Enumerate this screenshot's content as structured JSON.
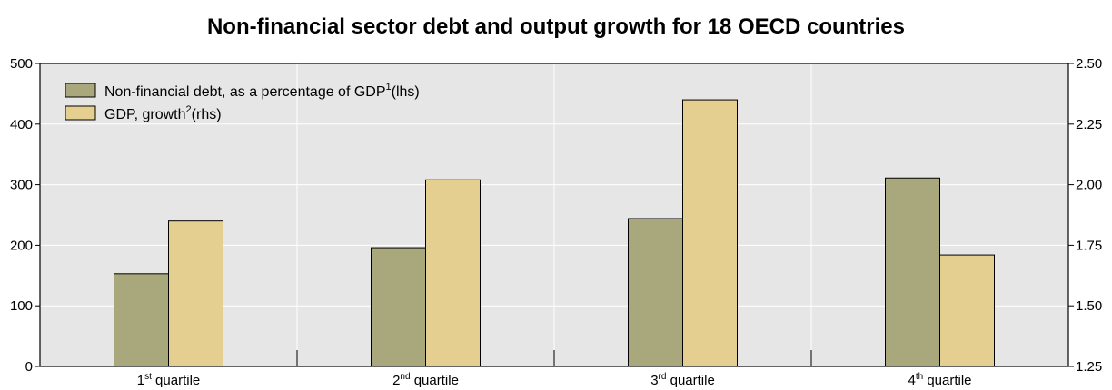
{
  "chart_data": {
    "type": "bar",
    "title": "Non-financial sector debt and output growth for 18 OECD countries",
    "categories": [
      {
        "base": "1",
        "sup": "st",
        "rest": " quartile"
      },
      {
        "base": "2",
        "sup": "nd",
        "rest": " quartile"
      },
      {
        "base": "3",
        "sup": "rd",
        "rest": " quartile"
      },
      {
        "base": "4",
        "sup": "th",
        "rest": " quartile"
      }
    ],
    "series": [
      {
        "name": "Non-financial debt, as a percentage of GDP",
        "name_sup": "1",
        "name_suffix": "(lhs)",
        "axis": "left",
        "color": "#a8a87c",
        "values": [
          153,
          196,
          244,
          311
        ]
      },
      {
        "name": "GDP, growth",
        "name_sup": "2",
        "name_suffix": "(rhs)",
        "axis": "right",
        "color": "#e5cf90",
        "values": [
          1.85,
          2.02,
          2.35,
          1.71
        ]
      }
    ],
    "ylim_left": [
      0,
      500
    ],
    "yticks_left": [
      "0",
      "100",
      "200",
      "300",
      "400",
      "500"
    ],
    "ylim_right": [
      1.25,
      2.5
    ],
    "yticks_right": [
      "1.25",
      "1.50",
      "1.75",
      "2.00",
      "2.25",
      "2.50"
    ],
    "grid": true,
    "legend_position": "top-left",
    "plot_background": "#e6e6e6"
  }
}
